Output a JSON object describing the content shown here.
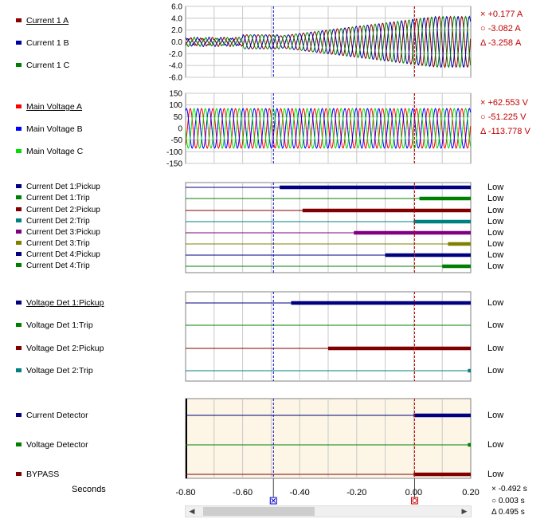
{
  "analog": [
    {
      "id": "current",
      "ticks": [
        "6.0",
        "4.0",
        "2.0",
        "0.0",
        "-2.0",
        "-4.0",
        "-6.0"
      ],
      "ymin": -6,
      "ymax": 6,
      "channels": [
        {
          "label": "Current 1 A",
          "color": "#8b0000",
          "underline": true
        },
        {
          "label": "Current 1 B",
          "color": "#0000a0",
          "underline": false
        },
        {
          "label": "Current 1 C",
          "color": "#008000",
          "underline": false
        }
      ],
      "readout": {
        "x": "+0.177  A",
        "o": "-3.082  A",
        "d": "-3.258  A"
      }
    },
    {
      "id": "voltage",
      "ticks": [
        "150",
        "100",
        "50",
        "0",
        "-50",
        "-100",
        "-150"
      ],
      "ymin": -150,
      "ymax": 150,
      "channels": [
        {
          "label": "Main Voltage A",
          "color": "#ff0000",
          "underline": true
        },
        {
          "label": "Main Voltage B",
          "color": "#0000ff",
          "underline": false
        },
        {
          "label": "Main Voltage C",
          "color": "#00e000",
          "underline": false
        }
      ],
      "readout": {
        "x": "+62.553  V",
        "o": "-51.225  V",
        "d": "-113.778  V"
      }
    }
  ],
  "digital_groups": [
    {
      "id": "current-det",
      "channels": [
        {
          "label": "Current  Det 1:Pickup",
          "color": "#000080",
          "start": -0.47,
          "state": "Low"
        },
        {
          "label": "Current  Det 1:Trip",
          "color": "#008000",
          "start": 0.02,
          "state": "Low"
        },
        {
          "label": "Current Det 2:Pickup",
          "color": "#800000",
          "start": -0.39,
          "state": "Low"
        },
        {
          "label": "Current  Det 2:Trip",
          "color": "#008080",
          "start": 0.0,
          "state": "Low"
        },
        {
          "label": "Current  Det 3:Pickup",
          "color": "#800080",
          "start": -0.21,
          "state": "Low"
        },
        {
          "label": "Current  Det 3:Trip",
          "color": "#808000",
          "start": 0.12,
          "state": "Low"
        },
        {
          "label": "Current  Det 4:Pickup",
          "color": "#000080",
          "start": -0.1,
          "state": "Low"
        },
        {
          "label": "Current  Det 4:Trip",
          "color": "#008000",
          "start": 0.1,
          "state": "Low"
        }
      ]
    },
    {
      "id": "voltage-det",
      "channels": [
        {
          "label": "Voltage Det 1:Pickup",
          "color": "#000080",
          "start": -0.43,
          "state": "Low",
          "underline": true
        },
        {
          "label": "Voltage Det 1:Trip",
          "color": "#008000",
          "start": null,
          "state": "Low"
        },
        {
          "label": "Voltage Det 2:Pickup",
          "color": "#800000",
          "start": -0.3,
          "state": "Low"
        },
        {
          "label": "Voltage Det 2:Trip",
          "color": "#008080",
          "start": 0.19,
          "state": "Low"
        }
      ]
    },
    {
      "id": "bypass",
      "channels": [
        {
          "label": "Current Detector",
          "color": "#000080",
          "start": 0.0,
          "state": "Low"
        },
        {
          "label": "Voltage Detector",
          "color": "#008000",
          "start": 0.19,
          "state": "Low"
        },
        {
          "label": "BYPASS",
          "color": "#800000",
          "start": 0.0,
          "state": "Low"
        }
      ]
    }
  ],
  "x_axis": {
    "label": "Seconds",
    "min": -0.8,
    "max": 0.2,
    "ticks": [
      "-0.80",
      "-0.60",
      "-0.40",
      "-0.20",
      "0.00",
      "0.20"
    ]
  },
  "cursors": {
    "x_cursor": -0.492,
    "o_cursor": 0.003
  },
  "time_readout": {
    "x": "-0.492 s",
    "o": "0.003 s",
    "d": "0.495 s"
  },
  "symbols": {
    "x": "×",
    "o": "○",
    "d": "Δ"
  },
  "scrollbar": {
    "left": "◀",
    "right": "▶"
  }
}
